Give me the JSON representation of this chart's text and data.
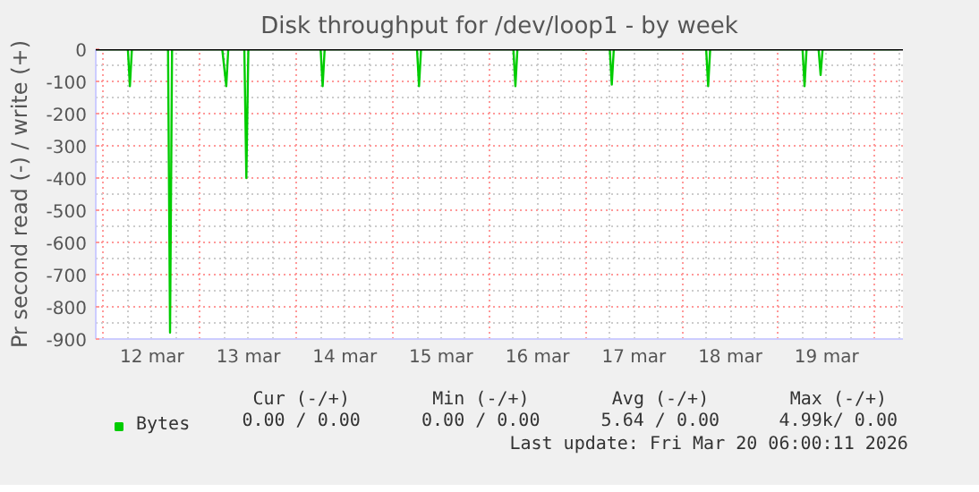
{
  "chart_data": {
    "type": "line",
    "title": "Disk throughput for /dev/loop1 - by week",
    "ylabel": "Pr second read (-) / write (+)",
    "x": [
      "2026-03-11T22:00",
      "2026-03-12T06:00",
      "2026-03-12T06:30",
      "2026-03-12T07:00",
      "2026-03-12T16:00",
      "2026-03-12T16:30",
      "2026-03-12T17:00",
      "2026-03-13T05:30",
      "2026-03-13T06:30",
      "2026-03-13T07:00",
      "2026-03-13T11:00",
      "2026-03-13T11:30",
      "2026-03-13T12:00",
      "2026-03-14T06:00",
      "2026-03-14T06:30",
      "2026-03-14T07:00",
      "2026-03-15T06:00",
      "2026-03-15T06:30",
      "2026-03-15T07:00",
      "2026-03-16T06:00",
      "2026-03-16T06:30",
      "2026-03-16T07:00",
      "2026-03-16T23:00",
      "2026-03-16T23:30",
      "2026-03-17T00:00",
      "2026-03-17T06:00",
      "2026-03-17T06:30",
      "2026-03-17T07:00",
      "2026-03-18T06:00",
      "2026-03-18T06:30",
      "2026-03-18T07:00",
      "2026-03-19T06:00",
      "2026-03-19T06:30",
      "2026-03-19T07:00",
      "2026-03-19T10:00",
      "2026-03-19T10:30",
      "2026-03-19T11:00",
      "2026-03-20T06:00"
    ],
    "series": [
      {
        "name": "Bytes",
        "color": "#00cc00",
        "values": [
          0,
          0,
          -115,
          0,
          0,
          -880,
          0,
          0,
          -115,
          0,
          0,
          -400,
          0,
          0,
          -115,
          0,
          0,
          -115,
          0,
          0,
          -115,
          0,
          0,
          -2,
          0,
          0,
          -110,
          0,
          0,
          -115,
          0,
          0,
          -115,
          0,
          0,
          -80,
          0,
          0
        ]
      }
    ],
    "xlim": [
      "2026-03-11T22:00",
      "2026-03-20T07:00"
    ],
    "xticks": [
      {
        "value": "2026-03-12T12:00",
        "label": "12 mar"
      },
      {
        "value": "2026-03-13T12:00",
        "label": "13 mar"
      },
      {
        "value": "2026-03-14T12:00",
        "label": "14 mar"
      },
      {
        "value": "2026-03-15T12:00",
        "label": "15 mar"
      },
      {
        "value": "2026-03-16T12:00",
        "label": "16 mar"
      },
      {
        "value": "2026-03-17T12:00",
        "label": "17 mar"
      },
      {
        "value": "2026-03-18T12:00",
        "label": "18 mar"
      },
      {
        "value": "2026-03-19T12:00",
        "label": "19 mar"
      }
    ],
    "ylim": [
      -900,
      0
    ],
    "yticks": [
      0,
      -100,
      -200,
      -300,
      -400,
      -500,
      -600,
      -700,
      -800,
      -900
    ],
    "ref_lines": [
      {
        "axis": "y",
        "value": 0,
        "color": "#000000"
      }
    ],
    "grid": true,
    "legend": "bottom left",
    "marker": "none",
    "line_style": "solid",
    "annotations": [
      "Cur (-/+)",
      "Min (-/+)",
      "Avg (-/+)",
      "Max (-/+)",
      "0.00 / 0.00",
      "0.00 / 0.00",
      "5.64 / 0.00",
      "4.99k/ 0.00",
      "Last update: Fri Mar 20 06:00:11 2026"
    ]
  }
}
